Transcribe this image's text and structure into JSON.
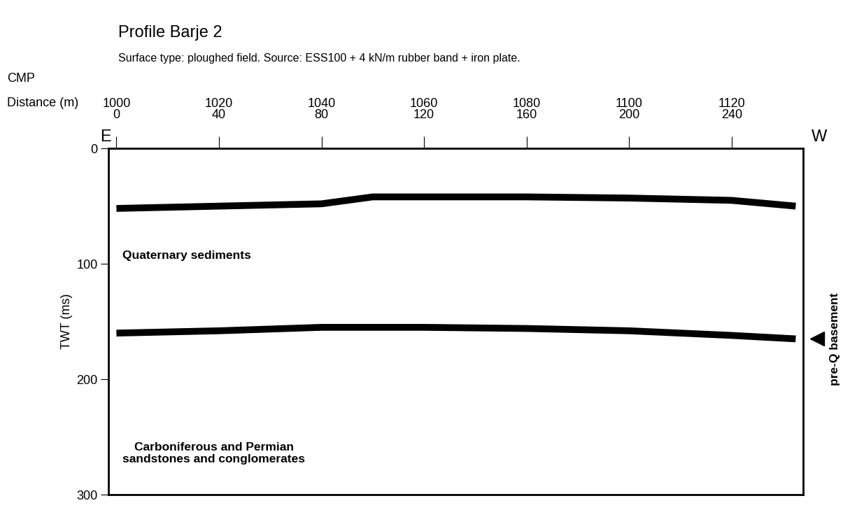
{
  "chart_data": {
    "type": "line",
    "title": "Profile Barje 2",
    "subtitle": "Surface type: ploughed field. Source: ESS100 + 4 kN/m rubber band + iron plate.",
    "cmp_label": "CMP",
    "x_label": "Distance (m)",
    "y_label": "TWT (ms)",
    "direction_labels": [
      "E",
      "W"
    ],
    "xlim": [
      -3,
      268
    ],
    "xticks": [
      0,
      40,
      80,
      120,
      160,
      200,
      240
    ],
    "cmp": [
      1000,
      1020,
      1040,
      1060,
      1080,
      1100,
      1120
    ],
    "ylim": [
      300,
      0
    ],
    "yticks": [
      0,
      100,
      200,
      300
    ],
    "grid": false,
    "series": [
      {
        "color": "#000000",
        "x": [
          0,
          40,
          80,
          100,
          120,
          160,
          200,
          240,
          265
        ],
        "values": [
          52,
          50,
          48,
          42,
          42,
          42,
          43,
          45,
          50
        ]
      },
      {
        "color": "#000000",
        "x": [
          0,
          40,
          80,
          120,
          160,
          200,
          240,
          265
        ],
        "values": [
          160,
          158,
          155,
          155,
          156,
          158,
          162,
          165
        ]
      }
    ],
    "annotations": [
      "Quaternary sediments",
      "Carboniferous and Permian\nsandstones and conglomerates",
      "pre-Q basement"
    ]
  }
}
